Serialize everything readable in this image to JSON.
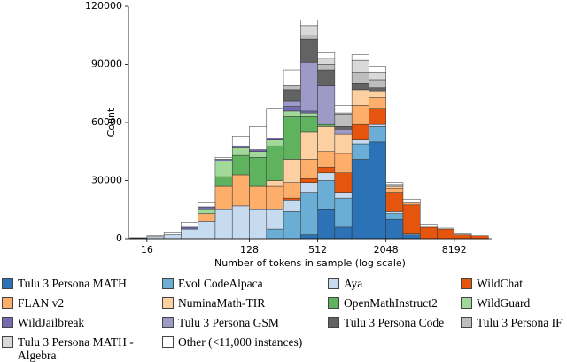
{
  "chart_data": {
    "type": "stacked-histogram",
    "x_label": "Number of tokens in sample (log scale)",
    "y_label": "Count",
    "xscale": "log",
    "xlim": [
      11,
      17500
    ],
    "ylim": [
      0,
      120000
    ],
    "xticks": [
      16,
      128,
      512,
      2048,
      8192
    ],
    "yticks": [
      0,
      30000,
      60000,
      90000,
      120000
    ],
    "bins": [
      11.31,
      16,
      22.63,
      32,
      45.25,
      64,
      90.51,
      128,
      181.02,
      256,
      362.04,
      512,
      724.08,
      1024,
      1448.15,
      2048,
      2896.31,
      4096,
      5792.62,
      8192,
      11585.24,
      16384
    ],
    "series": [
      {
        "name": "Tulu 3 Persona MATH",
        "color": "#2b72b6",
        "values": [
          0,
          0,
          0,
          0,
          0,
          0,
          0,
          0,
          0,
          0,
          2000,
          15000,
          6000,
          41000,
          50000,
          10000,
          2000,
          0,
          0,
          0,
          0
        ]
      },
      {
        "name": "Evol CodeAlpaca",
        "color": "#6aaed6",
        "values": [
          0,
          0,
          0,
          0,
          0,
          0,
          0,
          0,
          5000,
          14000,
          22000,
          15000,
          15000,
          8000,
          8000,
          3000,
          0,
          0,
          0,
          0,
          0
        ]
      },
      {
        "name": "Aya",
        "color": "#c6dbef",
        "values": [
          300,
          1000,
          2000,
          5000,
          9000,
          15000,
          17000,
          15000,
          10000,
          6000,
          5000,
          4000,
          3000,
          2000,
          1000,
          1000,
          500,
          0,
          0,
          0,
          0
        ]
      },
      {
        "name": "WildChat",
        "color": "#e6550d",
        "values": [
          0,
          0,
          0,
          0,
          0,
          0,
          0,
          0,
          0,
          1000,
          2000,
          3000,
          10000,
          8000,
          8000,
          10000,
          15000,
          6000,
          5000,
          2000,
          1500
        ]
      },
      {
        "name": "FLAN v2",
        "color": "#fdae6b",
        "values": [
          0,
          0,
          0,
          0,
          4000,
          12000,
          16000,
          12000,
          12000,
          8000,
          10000,
          8000,
          10000,
          10000,
          6000,
          2000,
          1000,
          0,
          0,
          0,
          0
        ]
      },
      {
        "name": "NuminaMath-TIR",
        "color": "#fdd0a2",
        "values": [
          0,
          0,
          0,
          0,
          0,
          0,
          0,
          0,
          3000,
          12000,
          14000,
          13000,
          10000,
          8000,
          3000,
          1000,
          0,
          0,
          0,
          0,
          0
        ]
      },
      {
        "name": "OpenMathInstruct2",
        "color": "#5fb35f",
        "values": [
          0,
          0,
          0,
          0,
          0,
          5000,
          10000,
          15000,
          18000,
          22000,
          8000,
          1000,
          0,
          0,
          0,
          0,
          0,
          0,
          0,
          0,
          0
        ]
      },
      {
        "name": "WildGuard",
        "color": "#a1d99b",
        "values": [
          0,
          0,
          0,
          0,
          2000,
          8000,
          4000,
          3000,
          3000,
          3000,
          2000,
          0,
          0,
          0,
          0,
          0,
          0,
          0,
          0,
          0,
          0
        ]
      },
      {
        "name": "WildJailbreak",
        "color": "#756bb1",
        "values": [
          0,
          0,
          0,
          1000,
          1500,
          1000,
          1000,
          1000,
          1000,
          2000,
          1000,
          0,
          0,
          0,
          0,
          0,
          0,
          0,
          0,
          0,
          0
        ]
      },
      {
        "name": "Tulu 3 Persona GSM",
        "color": "#9e9ac8",
        "values": [
          0,
          0,
          0,
          0,
          0,
          0,
          0,
          0,
          0,
          3000,
          25000,
          20000,
          2000,
          0,
          0,
          0,
          0,
          0,
          0,
          0,
          0
        ]
      },
      {
        "name": "Tulu 3 Persona Code",
        "color": "#636363",
        "values": [
          0,
          0,
          0,
          0,
          0,
          0,
          0,
          0,
          0,
          6000,
          12000,
          8000,
          2000,
          3000,
          2000,
          0,
          0,
          0,
          0,
          0,
          0
        ]
      },
      {
        "name": "Tulu 3 Persona IF",
        "color": "#bdbdbd",
        "values": [
          0,
          0,
          0,
          0,
          0,
          0,
          0,
          0,
          0,
          2000,
          2000,
          3000,
          6000,
          6000,
          4000,
          1000,
          0,
          0,
          0,
          0,
          0
        ]
      },
      {
        "name": "Tulu 3 Persona MATH - Algebra",
        "color": "#d9d9d9",
        "values": [
          0,
          0,
          0,
          0,
          0,
          0,
          0,
          0,
          0,
          0,
          5000,
          3000,
          1000,
          6000,
          4000,
          0,
          0,
          0,
          0,
          0,
          0
        ]
      },
      {
        "name": "Other (<11,000 instances)",
        "color": "#ffffff",
        "values": [
          200,
          500,
          1000,
          2500,
          2000,
          1000,
          5000,
          12000,
          15000,
          8000,
          3000,
          3000,
          4000,
          3000,
          3000,
          1000,
          2000,
          1000,
          500,
          500,
          0
        ]
      }
    ]
  }
}
